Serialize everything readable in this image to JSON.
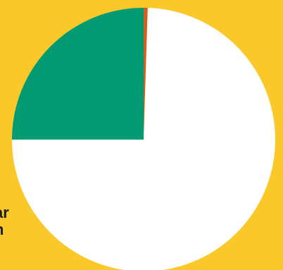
{
  "page": {
    "background_color": "#FBC829",
    "cropped_text": [
      ")",
      "ar",
      "n"
    ]
  },
  "chart_data": {
    "type": "pie",
    "title": "",
    "start_angle_deg": 0,
    "direction": "clockwise",
    "slices": [
      {
        "value": 0.5,
        "color": "#D35F1E"
      },
      {
        "value": 74.5,
        "color": "#FFFFFF"
      },
      {
        "value": 25,
        "color": "#009A73"
      }
    ]
  }
}
